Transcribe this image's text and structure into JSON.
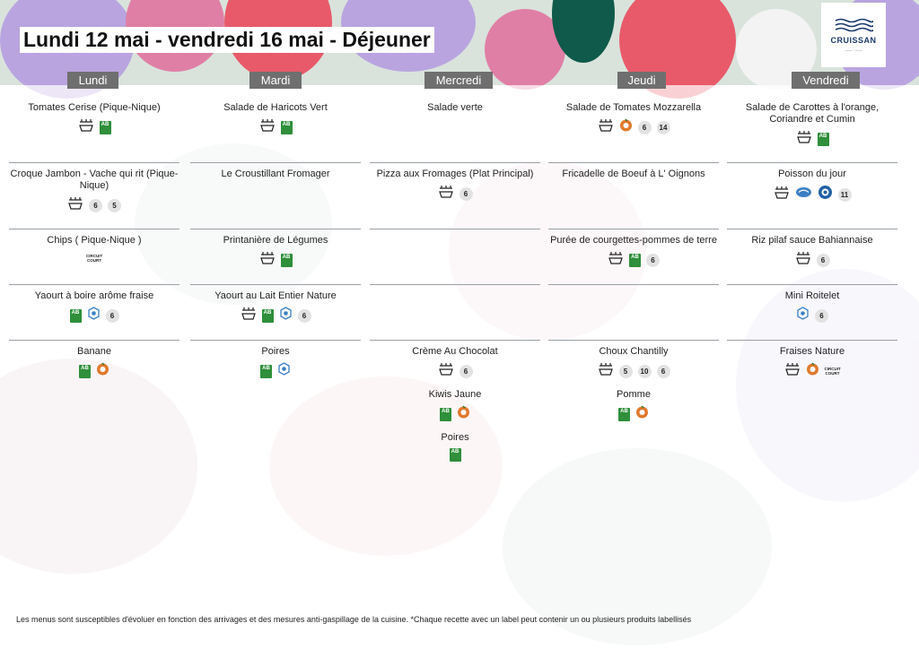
{
  "header": {
    "title": "Lundi 12 mai - vendredi 16 mai  - Déjeuner"
  },
  "logo": {
    "text": "CRUISSAN"
  },
  "days": [
    {
      "label": "Lundi",
      "rows": [
        [
          {
            "name": "Tomates Cerise (Pique-Nique)",
            "icons": [
              "fait-maison-icon",
              "ab-bio-icon"
            ],
            "badges": []
          }
        ],
        [
          {
            "name": "Croque Jambon - Vache qui rit (Pique-Nique)",
            "icons": [
              "fait-maison-icon"
            ],
            "badges": [
              "6",
              "5"
            ]
          }
        ],
        [
          {
            "name": "Chips ( Pique-Nique )",
            "icons": [
              "circuit-court-icon"
            ],
            "badges": []
          }
        ],
        [
          {
            "name": "Yaourt à boire arôme fraise",
            "icons": [
              "ab-bio-icon",
              "blue-label-icon"
            ],
            "badges": [
              "6"
            ]
          }
        ],
        [
          {
            "name": "Banane",
            "icons": [
              "ab-bio-icon",
              "commerce-equitable-icon"
            ],
            "badges": []
          }
        ]
      ]
    },
    {
      "label": "Mardi",
      "rows": [
        [
          {
            "name": "Salade de Haricots Vert",
            "icons": [
              "fait-maison-icon",
              "ab-bio-icon"
            ],
            "badges": []
          }
        ],
        [
          {
            "name": "Le Croustillant Fromager",
            "icons": [],
            "badges": []
          }
        ],
        [
          {
            "name": "Printanière de  Légumes",
            "icons": [
              "fait-maison-icon",
              "ab-bio-icon"
            ],
            "badges": []
          }
        ],
        [
          {
            "name": "Yaourt au Lait Entier Nature",
            "icons": [
              "fait-maison-icon",
              "ab-bio-icon",
              "blue-label-icon"
            ],
            "badges": [
              "6"
            ]
          }
        ],
        [
          {
            "name": "Poires",
            "icons": [
              "ab-bio-icon",
              "blue-label-icon"
            ],
            "badges": []
          }
        ]
      ]
    },
    {
      "label": "Mercredi",
      "rows": [
        [
          {
            "name": "Salade verte",
            "icons": [],
            "badges": []
          }
        ],
        [
          {
            "name": "Pizza aux Fromages  (Plat Principal)",
            "icons": [
              "fait-maison-icon"
            ],
            "badges": [
              "6"
            ]
          }
        ],
        [],
        [],
        [
          {
            "name": "Crème  Au Chocolat",
            "icons": [
              "fait-maison-icon"
            ],
            "badges": [
              "6"
            ]
          },
          {
            "name": "Kiwis Jaune",
            "icons": [
              "ab-bio-icon",
              "commerce-equitable-icon"
            ],
            "badges": []
          },
          {
            "name": "Poires",
            "icons": [
              "ab-bio-icon"
            ],
            "badges": []
          }
        ]
      ]
    },
    {
      "label": "Jeudi",
      "rows": [
        [
          {
            "name": "Salade de Tomates Mozzarella",
            "icons": [
              "fait-maison-icon",
              "commerce-equitable-icon"
            ],
            "badges": [
              "6",
              "14"
            ]
          }
        ],
        [
          {
            "name": "Fricadelle de Boeuf à L' Oignons",
            "icons": [],
            "badges": []
          }
        ],
        [
          {
            "name": "Purée de courgettes-pommes de terre",
            "icons": [
              "fait-maison-icon",
              "ab-bio-icon"
            ],
            "badges": [
              "6"
            ]
          }
        ],
        [],
        [
          {
            "name": "Choux Chantilly",
            "icons": [
              "fait-maison-icon"
            ],
            "badges": [
              "5",
              "10",
              "6"
            ]
          },
          {
            "name": "Pomme",
            "icons": [
              "ab-bio-icon",
              "commerce-equitable-icon"
            ],
            "badges": []
          }
        ]
      ]
    },
    {
      "label": "Vendredi",
      "rows": [
        [
          {
            "name": "Salade de Carottes à l'orange, Coriandre et Cumin",
            "icons": [
              "fait-maison-icon",
              "ab-bio-icon"
            ],
            "badges": []
          }
        ],
        [
          {
            "name": "Poisson du jour",
            "icons": [
              "fait-maison-icon",
              "peche-durable-icon",
              "msc-icon"
            ],
            "badges": [
              "11"
            ]
          }
        ],
        [
          {
            "name": "Riz pilaf sauce Bahiannaise",
            "icons": [
              "fait-maison-icon"
            ],
            "badges": [
              "6"
            ]
          }
        ],
        [
          {
            "name": "Mini Roitelet",
            "icons": [
              "blue-label-icon"
            ],
            "badges": [
              "6"
            ]
          }
        ],
        [
          {
            "name": "Fraises Nature",
            "icons": [
              "fait-maison-icon",
              "commerce-equitable-icon",
              "circuit-court-icon"
            ],
            "badges": []
          }
        ]
      ]
    }
  ],
  "labels": {
    "ab": "AB",
    "circuit_court": "CIRCUIT COURT"
  },
  "footer": {
    "text": "Les menus sont susceptibles d'évoluer en fonction des arrivages et des mesures anti-gaspillage de la cuisine. *Chaque recette avec un label peut contenir un ou plusieurs produits labellisés"
  },
  "colors": {
    "tab": "#6f6f6f",
    "bio": "#2f8f3a",
    "equitable": "#e07a2e",
    "blue_label": "#3b7fc4",
    "separator": "#9aa0a6"
  }
}
